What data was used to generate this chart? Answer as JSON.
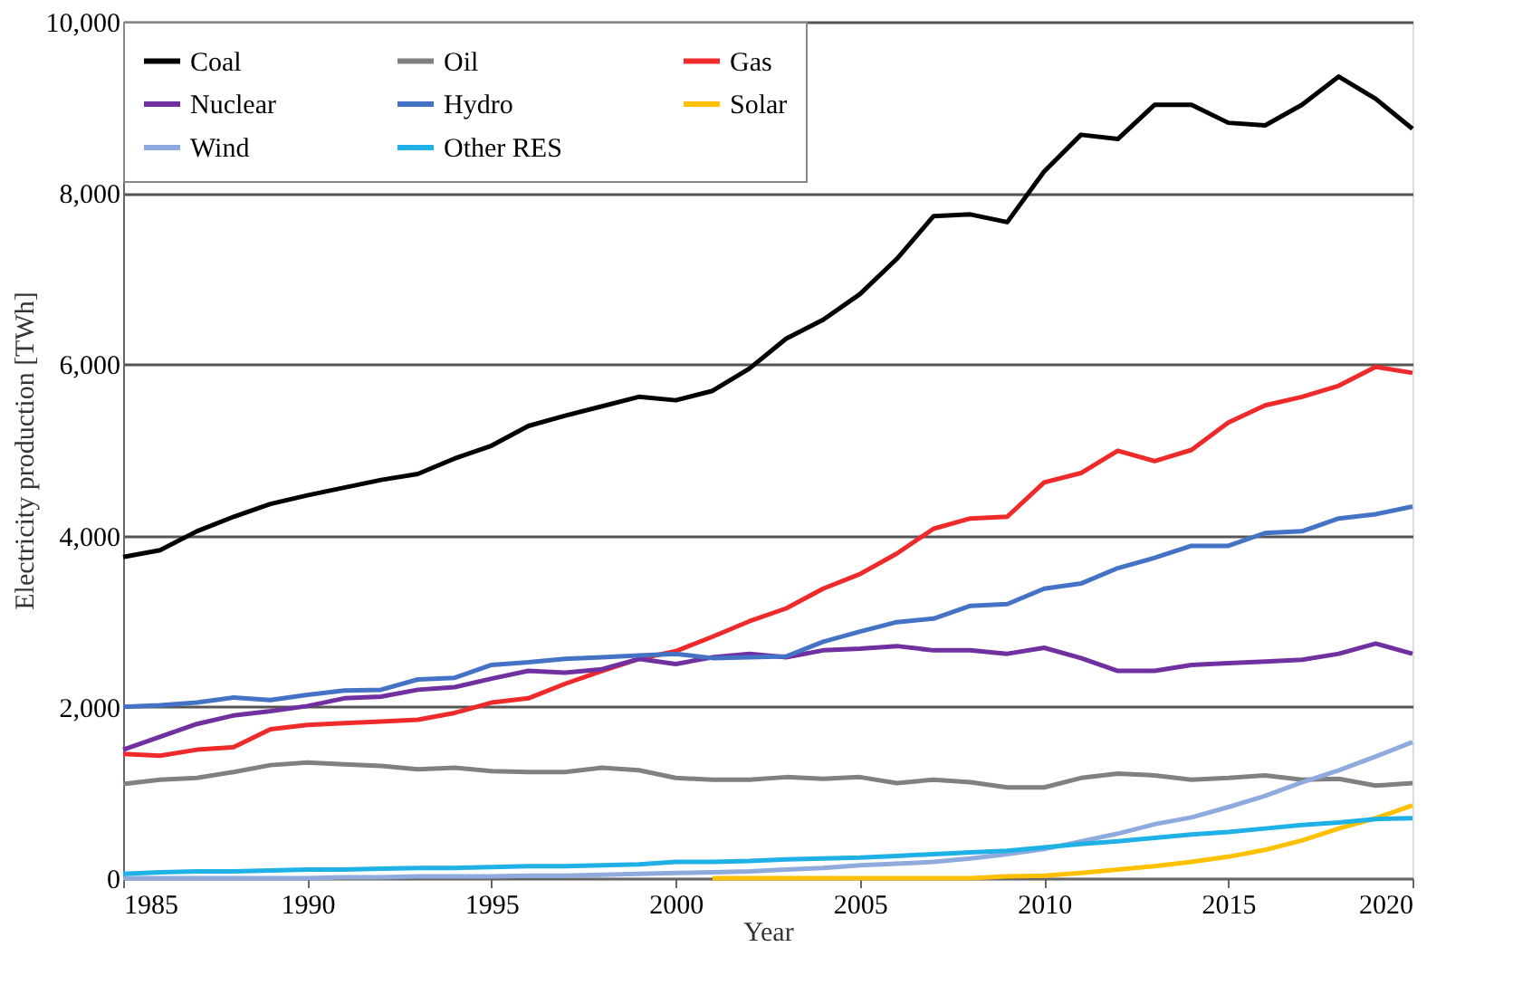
{
  "chart_data": {
    "type": "line",
    "xlabel": "Year",
    "ylabel": "Electricity production [TWh]",
    "x": [
      1985,
      1986,
      1987,
      1988,
      1989,
      1990,
      1991,
      1992,
      1993,
      1994,
      1995,
      1996,
      1997,
      1998,
      1999,
      2000,
      2001,
      2002,
      2003,
      2004,
      2005,
      2006,
      2007,
      2008,
      2009,
      2010,
      2011,
      2012,
      2013,
      2014,
      2015,
      2016,
      2017,
      2018,
      2019,
      2020
    ],
    "xlim": [
      1985,
      2020
    ],
    "xticks": [
      1985,
      1990,
      1995,
      2000,
      2005,
      2010,
      2015,
      2020
    ],
    "ylim": [
      0,
      10000
    ],
    "yticks": [
      {
        "value": 0,
        "label": "0"
      },
      {
        "value": 2000,
        "label": "2,000"
      },
      {
        "value": 4000,
        "label": "4,000"
      },
      {
        "value": 6000,
        "label": "6,000"
      },
      {
        "value": 8000,
        "label": "8,000"
      },
      {
        "value": 10000,
        "label": "10,000"
      }
    ],
    "grid": "y",
    "legend": "top left",
    "marker": "none",
    "line_style": "solid",
    "series": [
      {
        "name": "Coal",
        "color": "#000000",
        "values": [
          3750,
          3830,
          4050,
          4220,
          4370,
          4470,
          4560,
          4650,
          4720,
          4900,
          5050,
          5280,
          5400,
          5510,
          5620,
          5580,
          5690,
          5950,
          6300,
          6520,
          6820,
          7230,
          7730,
          7750,
          7660,
          8250,
          8680,
          8630,
          9030,
          9030,
          8820,
          8790,
          9030,
          9360,
          9100,
          8750
        ]
      },
      {
        "name": "Oil",
        "color": "#808080",
        "values": [
          1100,
          1150,
          1170,
          1240,
          1320,
          1350,
          1330,
          1310,
          1270,
          1290,
          1250,
          1240,
          1240,
          1290,
          1260,
          1170,
          1150,
          1150,
          1180,
          1160,
          1180,
          1110,
          1150,
          1120,
          1060,
          1060,
          1170,
          1220,
          1200,
          1150,
          1170,
          1200,
          1150,
          1160,
          1080,
          1110
        ]
      },
      {
        "name": "Gas",
        "color": "#ee2a2a",
        "values": [
          1450,
          1430,
          1500,
          1530,
          1740,
          1790,
          1810,
          1830,
          1850,
          1930,
          2050,
          2100,
          2270,
          2420,
          2560,
          2650,
          2820,
          3000,
          3150,
          3380,
          3550,
          3790,
          4080,
          4200,
          4220,
          4620,
          4730,
          4990,
          4870,
          5000,
          5320,
          5520,
          5620,
          5750,
          5970,
          5900
        ]
      },
      {
        "name": "Nuclear",
        "color": "#7030a0",
        "values": [
          1500,
          1650,
          1800,
          1900,
          1950,
          2010,
          2100,
          2120,
          2200,
          2230,
          2330,
          2420,
          2400,
          2440,
          2560,
          2500,
          2580,
          2620,
          2580,
          2660,
          2680,
          2710,
          2660,
          2660,
          2620,
          2690,
          2570,
          2420,
          2420,
          2490,
          2510,
          2530,
          2550,
          2620,
          2740,
          2620
        ]
      },
      {
        "name": "Hydro",
        "color": "#4472c4",
        "values": [
          2000,
          2020,
          2050,
          2110,
          2080,
          2140,
          2190,
          2200,
          2320,
          2340,
          2490,
          2520,
          2560,
          2580,
          2600,
          2620,
          2570,
          2580,
          2590,
          2760,
          2880,
          2990,
          3030,
          3180,
          3200,
          3380,
          3440,
          3620,
          3740,
          3880,
          3880,
          4030,
          4050,
          4200,
          4250,
          4340
        ]
      },
      {
        "name": "Solar",
        "color": "#ffc000",
        "values": [
          null,
          null,
          null,
          null,
          null,
          null,
          null,
          null,
          null,
          null,
          null,
          null,
          null,
          null,
          null,
          null,
          0,
          0,
          0,
          0,
          0,
          0,
          0,
          0,
          20,
          30,
          60,
          100,
          140,
          190,
          250,
          330,
          440,
          580,
          700,
          850
        ]
      },
      {
        "name": "Wind",
        "color": "#8faadc",
        "values": [
          0,
          0,
          0,
          0,
          0,
          0,
          10,
          10,
          20,
          20,
          20,
          30,
          30,
          40,
          50,
          60,
          70,
          80,
          100,
          120,
          150,
          170,
          190,
          230,
          280,
          340,
          430,
          520,
          630,
          710,
          830,
          960,
          1120,
          1260,
          1420,
          1590
        ]
      },
      {
        "name": "Other RES",
        "color": "#1fb0e6",
        "values": [
          50,
          70,
          80,
          80,
          90,
          100,
          100,
          110,
          120,
          120,
          130,
          140,
          140,
          150,
          160,
          190,
          190,
          200,
          220,
          230,
          240,
          260,
          280,
          300,
          320,
          360,
          400,
          430,
          470,
          510,
          540,
          580,
          620,
          650,
          690,
          700
        ]
      }
    ]
  }
}
